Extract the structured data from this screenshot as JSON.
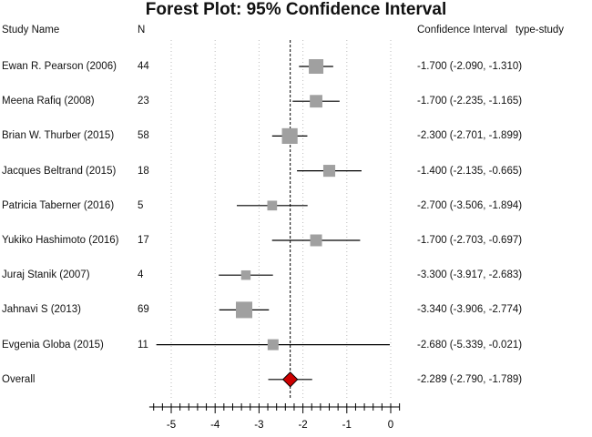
{
  "chart_data": {
    "type": "forest",
    "title": "Forest Plot: 95% Confidence Interval",
    "columns": {
      "study": "Study Name",
      "n": "N",
      "ci": "Confidence Interval",
      "type": "type-study"
    },
    "studies": [
      {
        "name": "Ewan R. Pearson (2006)",
        "n": "44",
        "estimate": -1.7,
        "lower": -2.09,
        "upper": -1.31,
        "ci_text": "-1.700 (-2.090, -1.310)"
      },
      {
        "name": "Meena Rafiq (2008)",
        "n": "23",
        "estimate": -1.7,
        "lower": -2.235,
        "upper": -1.165,
        "ci_text": "-1.700 (-2.235, -1.165)"
      },
      {
        "name": "Brian W. Thurber (2015)",
        "n": "58",
        "estimate": -2.3,
        "lower": -2.701,
        "upper": -1.899,
        "ci_text": "-2.300 (-2.701, -1.899)"
      },
      {
        "name": "Jacques Beltrand (2015)",
        "n": "18",
        "estimate": -1.4,
        "lower": -2.135,
        "upper": -0.665,
        "ci_text": "-1.400 (-2.135, -0.665)"
      },
      {
        "name": "Patricia Taberner (2016)",
        "n": "5",
        "estimate": -2.7,
        "lower": -3.506,
        "upper": -1.894,
        "ci_text": "-2.700 (-3.506, -1.894)"
      },
      {
        "name": "Yukiko Hashimoto (2016)",
        "n": "17",
        "estimate": -1.7,
        "lower": -2.703,
        "upper": -0.697,
        "ci_text": "-1.700 (-2.703, -0.697)"
      },
      {
        "name": "Juraj Stanik (2007)",
        "n": "4",
        "estimate": -3.3,
        "lower": -3.917,
        "upper": -2.683,
        "ci_text": "-3.300 (-3.917, -2.683)"
      },
      {
        "name": "Jahnavi S (2013)",
        "n": "69",
        "estimate": -3.34,
        "lower": -3.906,
        "upper": -2.774,
        "ci_text": "-3.340 (-3.906, -2.774)"
      },
      {
        "name": "Evgenia Globa (2015)",
        "n": "11",
        "estimate": -2.68,
        "lower": -5.339,
        "upper": -0.021,
        "ci_text": "-2.680 (-5.339, -0.021)"
      }
    ],
    "overall": {
      "name": "Overall",
      "estimate": -2.289,
      "lower": -2.79,
      "upper": -1.789,
      "ci_text": "-2.289 (-2.790, -1.789)"
    },
    "xlim": [
      -5.5,
      0.2
    ],
    "xticks": [
      -5,
      -4,
      -3,
      -2,
      -1,
      0
    ],
    "xtick_labels": [
      "-5",
      "-4",
      "-3",
      "-2",
      "-1",
      "0"
    ],
    "colors": {
      "study_marker": "#a0a0a0",
      "overall_marker": "#cc0000",
      "grid": "#bbbbbb"
    }
  }
}
